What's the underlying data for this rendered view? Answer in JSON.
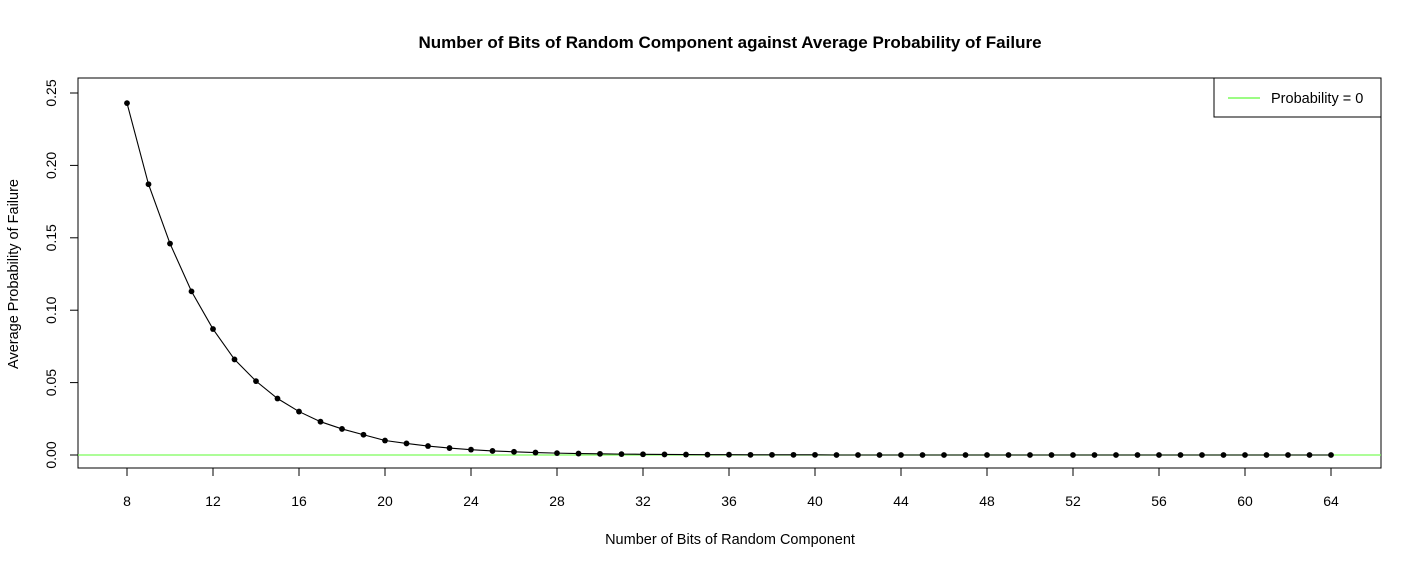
{
  "chart_data": {
    "type": "line",
    "title": "Number of Bits of Random Component against Average Probability of Failure",
    "xlabel": "Number of Bits of Random Component",
    "ylabel": "Average Probability of Failure",
    "xlim": [
      8,
      64
    ],
    "ylim": [
      0,
      0.25
    ],
    "x_ticks": [
      8,
      12,
      16,
      20,
      24,
      28,
      32,
      36,
      40,
      44,
      48,
      52,
      56,
      60,
      64
    ],
    "x_tick_labels": [
      "8",
      "12",
      "16",
      "20",
      "24",
      "28",
      "32",
      "36",
      "40",
      "44",
      "48",
      "52",
      "56",
      "60",
      "64"
    ],
    "y_ticks": [
      0,
      0.05,
      0.1,
      0.15,
      0.2,
      0.25
    ],
    "y_tick_labels": [
      "0.00",
      "0.05",
      "0.10",
      "0.15",
      "0.20",
      "0.25"
    ],
    "grid": false,
    "series": [
      {
        "name": "Average Probability of Failure",
        "color": "#000000",
        "marker": "filled-circle",
        "x": [
          8,
          9,
          10,
          11,
          12,
          13,
          14,
          15,
          16,
          17,
          18,
          19,
          20,
          21,
          22,
          23,
          24,
          25,
          26,
          27,
          28,
          29,
          30,
          31,
          32,
          33,
          34,
          35,
          36,
          37,
          38,
          39,
          40,
          41,
          42,
          43,
          44,
          45,
          46,
          47,
          48,
          49,
          50,
          51,
          52,
          53,
          54,
          55,
          56,
          57,
          58,
          59,
          60,
          61,
          62,
          63,
          64
        ],
        "values": [
          0.243,
          0.187,
          0.146,
          0.113,
          0.087,
          0.066,
          0.051,
          0.039,
          0.03,
          0.023,
          0.018,
          0.014,
          0.01,
          0.008,
          0.0062,
          0.0048,
          0.0037,
          0.0028,
          0.0022,
          0.0017,
          0.0013,
          0.001,
          0.0008,
          0.0006,
          0.0005,
          0.0004,
          0.0003,
          0.0002,
          0.0002,
          0.0001,
          0.0001,
          0.0001,
          0.0001,
          0,
          0,
          0,
          0,
          0,
          0,
          0,
          0,
          0,
          0,
          0,
          0,
          0,
          0,
          0,
          0,
          0,
          0,
          0,
          0,
          0,
          0,
          0,
          0
        ]
      }
    ],
    "reference_lines": [
      {
        "name": "Probability = 0",
        "y": 0,
        "color": "#7CFC5B"
      }
    ],
    "legend": {
      "position": "top-right",
      "entries": [
        {
          "label": "Probability = 0",
          "color": "#7CFC5B"
        }
      ]
    }
  }
}
